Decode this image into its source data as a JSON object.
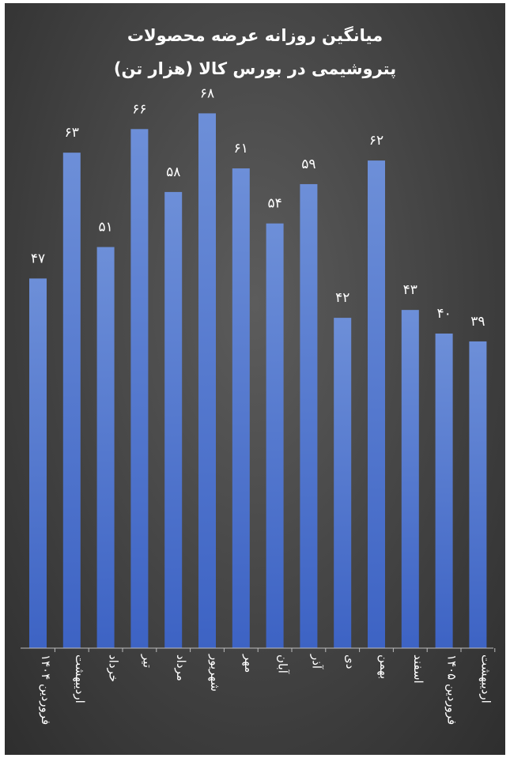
{
  "chart_data": {
    "type": "bar",
    "title_lines": [
      "میانگین روزانه عرضه محصولات",
      "پتروشیمی در بورس کالا (هزار تن)"
    ],
    "categories": [
      "فروردین ۱۴۰۴",
      "اردیبهشت",
      "خرداد",
      "تیر",
      "مرداد",
      "شهریور",
      "مهر",
      "آبان",
      "آذر",
      "دی",
      "بهمن",
      "اسفند",
      "فروردین ۱۴۰۵",
      "اردیبهشت"
    ],
    "values": [
      47,
      63,
      51,
      66,
      58,
      68,
      61,
      54,
      59,
      42,
      62,
      43,
      40,
      39
    ],
    "value_labels": [
      "۴۷",
      "۶۳",
      "۵۱",
      "۶۶",
      "۵۸",
      "۶۸",
      "۶۱",
      "۵۴",
      "۵۹",
      "۴۲",
      "۶۲",
      "۴۳",
      "۴۰",
      "۳۹"
    ],
    "xlabel": "",
    "ylabel": "",
    "ylim": [
      0,
      80
    ],
    "grid": false,
    "legend": "none",
    "colors": {
      "bar_top": "#6d8fd8",
      "bar_bottom": "#3d63c4",
      "text": "#ffffff",
      "axis": "#bdbdbd"
    }
  }
}
